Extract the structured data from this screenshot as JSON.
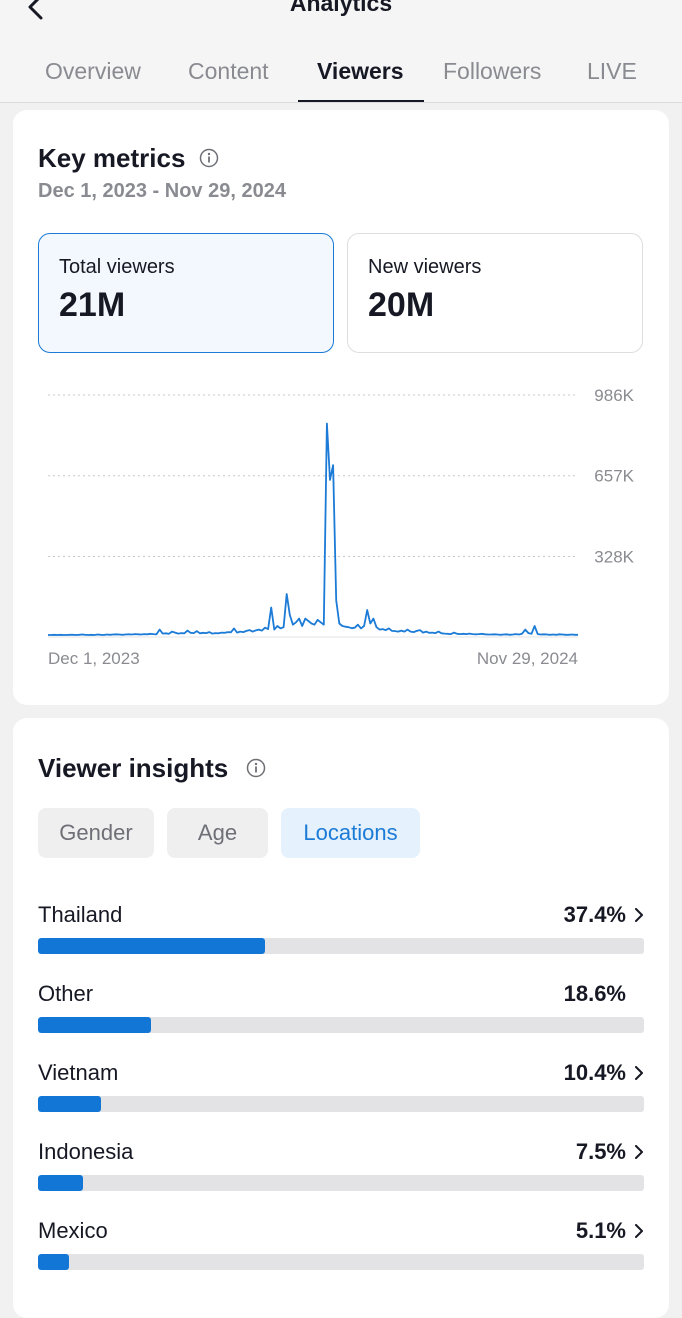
{
  "header": {
    "title": "Analytics",
    "back_icon": "chevron-left-icon"
  },
  "tabs": [
    {
      "label": "Overview",
      "active": false
    },
    {
      "label": "Content",
      "active": false
    },
    {
      "label": "Viewers",
      "active": true
    },
    {
      "label": "Followers",
      "active": false
    },
    {
      "label": "LIVE",
      "active": false
    }
  ],
  "key_metrics": {
    "title": "Key metrics",
    "info_icon": "info-icon",
    "date_range": "Dec 1, 2023 - Nov 29, 2024",
    "cards": [
      {
        "label": "Total viewers",
        "value": "21M",
        "selected": true
      },
      {
        "label": "New viewers",
        "value": "20M",
        "selected": false
      }
    ]
  },
  "chart_data": {
    "type": "line",
    "x_start_label": "Dec 1, 2023",
    "x_end_label": "Nov 29, 2024",
    "y_tick_labels": [
      "328K",
      "657K",
      "986K"
    ],
    "y_ticks": [
      328000,
      657000,
      986000
    ],
    "ylim": [
      0,
      986000
    ],
    "grid": true,
    "series": [
      {
        "color": "#1b7bd6",
        "values": [
          8000,
          8000,
          9000,
          8000,
          9000,
          8000,
          8000,
          9000,
          9000,
          8000,
          9000,
          10000,
          9000,
          8000,
          9000,
          8000,
          10000,
          9000,
          8000,
          10000,
          9000,
          10000,
          11000,
          10000,
          9000,
          10000,
          11000,
          10000,
          12000,
          11000,
          10000,
          12000,
          11000,
          13000,
          12000,
          11000,
          30000,
          14000,
          15000,
          13000,
          22000,
          18000,
          14000,
          16000,
          15000,
          26000,
          17000,
          16000,
          24000,
          15000,
          17000,
          16000,
          20000,
          14000,
          16000,
          15000,
          18000,
          17000,
          20000,
          19000,
          35000,
          18000,
          22000,
          20000,
          25000,
          28000,
          22000,
          27000,
          30000,
          26000,
          38000,
          32000,
          120000,
          30000,
          45000,
          35000,
          40000,
          175000,
          90000,
          50000,
          60000,
          75000,
          45000,
          75000,
          65000,
          55000,
          50000,
          70000,
          60000,
          50000,
          870000,
          640000,
          700000,
          150000,
          55000,
          45000,
          42000,
          40000,
          36000,
          38000,
          50000,
          35000,
          45000,
          110000,
          55000,
          75000,
          40000,
          30000,
          32000,
          28000,
          35000,
          25000,
          24000,
          22000,
          26000,
          22000,
          30000,
          22000,
          20000,
          25000,
          28000,
          18000,
          22000,
          17000,
          18000,
          16000,
          22000,
          15000,
          14000,
          13000,
          12000,
          18000,
          13000,
          12000,
          13000,
          12000,
          14000,
          12000,
          11000,
          12000,
          13000,
          11000,
          10000,
          10000,
          11000,
          10000,
          9000,
          10000,
          11000,
          9000,
          10000,
          12000,
          10000,
          14000,
          30000,
          16000,
          13000,
          45000,
          12000,
          10000,
          11000,
          10000,
          9000,
          10000,
          9000,
          11000,
          10000,
          9000,
          9000,
          10000,
          9000,
          9000
        ]
      }
    ]
  },
  "viewer_insights": {
    "title": "Viewer insights",
    "info_icon": "info-icon",
    "filters": [
      {
        "label": "Gender",
        "active": false
      },
      {
        "label": "Age",
        "active": false
      },
      {
        "label": "Locations",
        "active": true
      }
    ],
    "locations": [
      {
        "name": "Thailand",
        "percent_label": "37.4%",
        "percent": 37.4,
        "has_chevron": true
      },
      {
        "name": "Other",
        "percent_label": "18.6%",
        "percent": 18.6,
        "has_chevron": false
      },
      {
        "name": "Vietnam",
        "percent_label": "10.4%",
        "percent": 10.4,
        "has_chevron": true
      },
      {
        "name": "Indonesia",
        "percent_label": "7.5%",
        "percent": 7.5,
        "has_chevron": true
      },
      {
        "name": "Mexico",
        "percent_label": "5.1%",
        "percent": 5.1,
        "has_chevron": true
      }
    ]
  }
}
